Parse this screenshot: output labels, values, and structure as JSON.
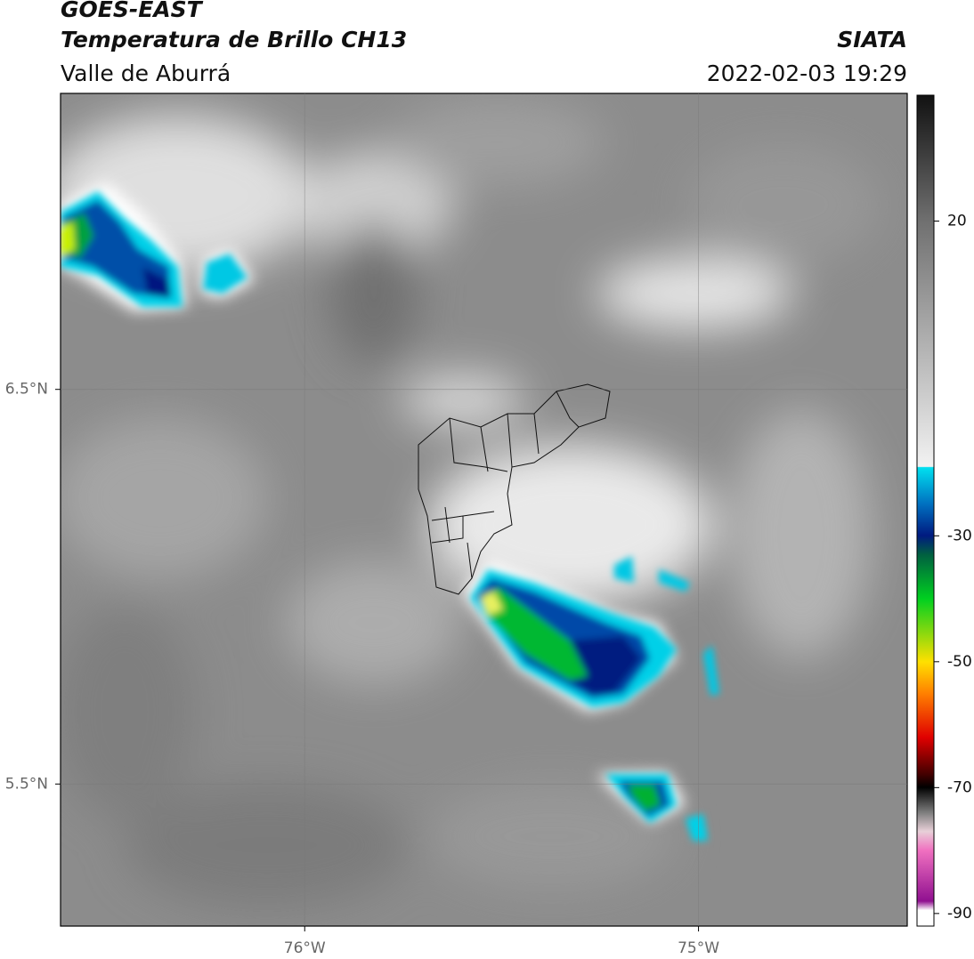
{
  "header": {
    "satellite": "GOES-EAST",
    "product": "Temperatura de Brillo CH13",
    "region": "Valle de Aburrá",
    "source": "SIATA",
    "datetime": "2022-02-03 19:29"
  },
  "chart_data": {
    "type": "map",
    "xlim": [
      -76.62,
      -74.47
    ],
    "ylim": [
      5.14,
      7.25
    ],
    "xticks": [
      {
        "value": -76,
        "label": "76°W"
      },
      {
        "value": -75,
        "label": "75°W"
      }
    ],
    "yticks": [
      {
        "value": 5.5,
        "label": "5.5°N"
      },
      {
        "value": 6.5,
        "label": "6.5°N"
      }
    ],
    "grid": true,
    "colorbar": {
      "lim": [
        -92,
        40
      ],
      "ticks": [
        -90,
        -70,
        -50,
        -30,
        20
      ]
    }
  }
}
